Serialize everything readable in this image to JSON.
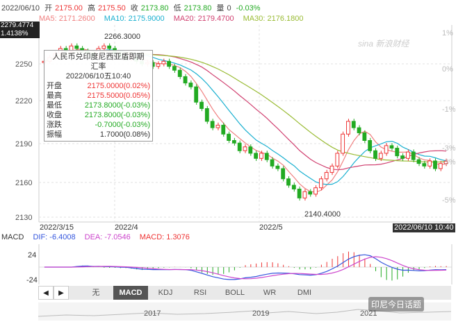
{
  "quote": {
    "date": "2022/06/10",
    "open_label": "开",
    "open": "2175.00",
    "high_label": "高",
    "high": "2175.50",
    "close_label": "收",
    "close": "2173.80",
    "low_label": "低",
    "low": "2173.80",
    "vol_label": "量",
    "vol": "0",
    "change": "-0.03%"
  },
  "ma": {
    "ma5": "MA5: 2171.2600",
    "ma10": "MA10: 2175.9000",
    "ma20": "MA20: 2179.4700",
    "ma30": "MA30: 2176.1800"
  },
  "current": {
    "price": "2279.4774",
    "pct": "1.4138%"
  },
  "peak_label": "2266.3000",
  "low_label": "2140.4000",
  "sina": "sina 新浪财经",
  "tooltip": {
    "title1": "人民币兑印度尼西亚盾即期",
    "title2": "汇率",
    "datetime": "2022/06/10五10:40",
    "rows": [
      {
        "k": "开盘",
        "v": "2175.0000(0.02%)",
        "c": "#e33"
      },
      {
        "k": "最高",
        "v": "2175.5000(0.05%)",
        "c": "#e33"
      },
      {
        "k": "最低",
        "v": "2173.8000(-0.03%)",
        "c": "#2a2"
      },
      {
        "k": "收盘",
        "v": "2173.8000(-0.03%)",
        "c": "#2a2"
      },
      {
        "k": "涨跌",
        "v": "-0.7000(-0.03%)",
        "c": "#2a2"
      },
      {
        "k": "振幅",
        "v": "1.7000(0.08%)",
        "c": "#333"
      }
    ]
  },
  "xaxis": [
    "2022/3/15",
    "2022/4",
    "2022/5"
  ],
  "date_tag": "2022/06/10 10:40",
  "yaxis_left": [
    "2250",
    "2220",
    "2190",
    "2160",
    "2130"
  ],
  "yaxis_right": [
    "1%",
    "0%",
    "-1%",
    "-3%",
    "-3%",
    "-5%"
  ],
  "macd": {
    "label": "MACD",
    "dif": "DIF: -6.4008",
    "dea": "DEA: -7.0546",
    "macd": "MACD: 1.3076",
    "y_top": "24",
    "y_bottom": "-24"
  },
  "tabs": [
    "无",
    "MACD",
    "KDJ",
    "RSI",
    "BOLL",
    "WR",
    "DMI"
  ],
  "years": [
    "2017",
    "2019",
    "2021"
  ],
  "watermark": "印尼今日话题",
  "colors": {
    "up": "#e33",
    "down": "#2a2",
    "ma5": "#f08080",
    "ma10": "#1ab0d0",
    "ma20": "#d04070",
    "ma30": "#99bb33"
  }
}
